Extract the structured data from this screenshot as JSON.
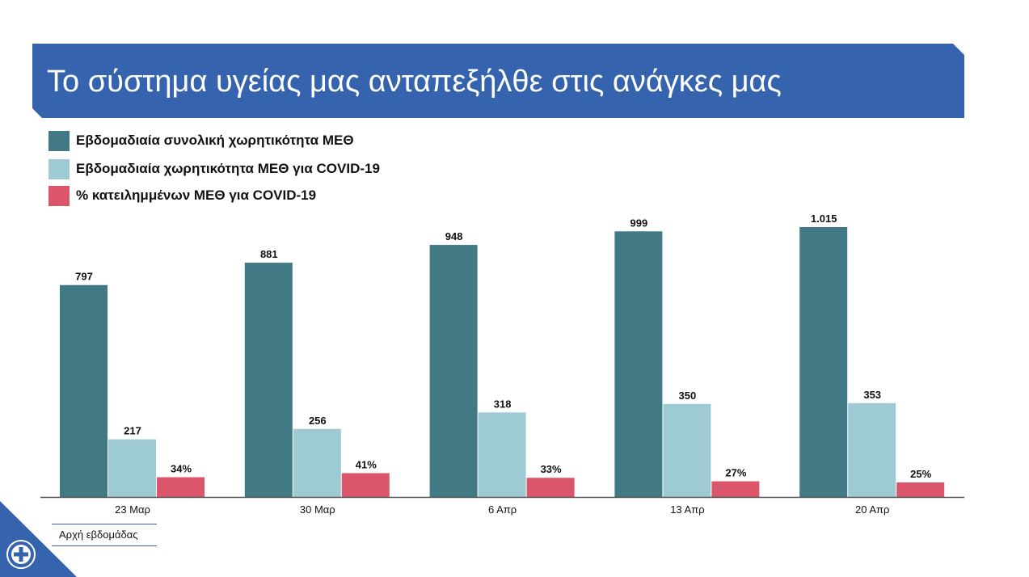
{
  "title": "Το σύστημα υγείας μας ανταπεξήλθε στις ανάγκες μας",
  "legend": [
    {
      "label": "Εβδομαδιαία συνολική χωρητικότητα ΜΕΘ",
      "color": "#417a84"
    },
    {
      "label": "Εβδομαδιαία χωρητικότητα ΜΕΘ για COVID-19",
      "color": "#9ecad3"
    },
    {
      "label": "% κατειλημμένων ΜΕΘ για COVID-19",
      "color": "#db566b"
    }
  ],
  "axis_caption": "Αρχή εβδομάδας",
  "chart_data": {
    "type": "bar",
    "categories": [
      "23 Μαρ",
      "30 Μαρ",
      "6 Απρ",
      "13 Απρ",
      "20 Απρ"
    ],
    "series": [
      {
        "name": "Εβδομαδιαία συνολική χωρητικότητα ΜΕΘ",
        "values": [
          797,
          881,
          948,
          999,
          1015
        ],
        "labels": [
          "797",
          "881",
          "948",
          "999",
          "1.015"
        ],
        "color": "#417a84"
      },
      {
        "name": "Εβδομαδιαία χωρητικότητα ΜΕΘ για COVID-19",
        "values": [
          217,
          256,
          318,
          350,
          353
        ],
        "labels": [
          "217",
          "256",
          "318",
          "350",
          "353"
        ],
        "color": "#9ecad3"
      },
      {
        "name": "% κατειλημμένων ΜΕΘ για COVID-19",
        "values": [
          34,
          41,
          33,
          27,
          25
        ],
        "labels": [
          "34%",
          "41%",
          "33%",
          "27%",
          "25%"
        ],
        "unit": "%",
        "color": "#db566b"
      }
    ],
    "xlabel": "Αρχή εβδομάδας",
    "grid": false,
    "legend_position": "top-left"
  }
}
